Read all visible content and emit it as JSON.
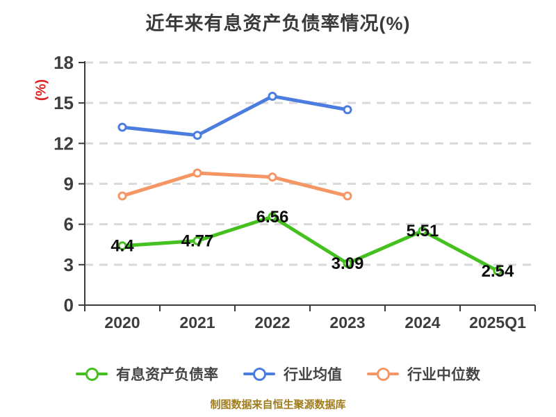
{
  "chart_data": {
    "type": "line",
    "title": "近年来有息资产负债率情况(%)",
    "ylabel": "(%)",
    "caption": "制图数据来自恒生聚源数据库",
    "categories": [
      "2020",
      "2021",
      "2022",
      "2023",
      "2024",
      "2025Q1"
    ],
    "yticks": [
      0,
      3,
      6,
      9,
      12,
      15,
      18
    ],
    "ylim": [
      0,
      18
    ],
    "grid": "horizontal-dashed",
    "legend_position": "bottom",
    "series": [
      {
        "name": "有息资产负债率",
        "color": "#44c01f",
        "values": [
          4.4,
          4.77,
          6.56,
          3.09,
          5.51,
          2.54
        ],
        "labels": [
          "4.4",
          "4.77",
          "6.56",
          "3.09",
          "5.51",
          "2.54"
        ],
        "show_labels": true
      },
      {
        "name": "行业均值",
        "color": "#4b7de0",
        "values": [
          13.2,
          12.6,
          15.5,
          14.5,
          null,
          null
        ],
        "labels": [],
        "show_labels": false
      },
      {
        "name": "行业中位数",
        "color": "#f59664",
        "values": [
          8.1,
          9.8,
          9.5,
          8.1,
          null,
          null
        ],
        "labels": [],
        "show_labels": false
      }
    ],
    "colors": {
      "background": "#ffffff",
      "title": "#3a3a3a",
      "axis": "#3b3b3b",
      "grid": "#d9d9d9",
      "tick_text": "#3d3d3d",
      "value_label": "#0d0d0d",
      "ylabel": "#e02222",
      "caption": "#a07c1c",
      "marker_fill": "#ffffff"
    }
  }
}
